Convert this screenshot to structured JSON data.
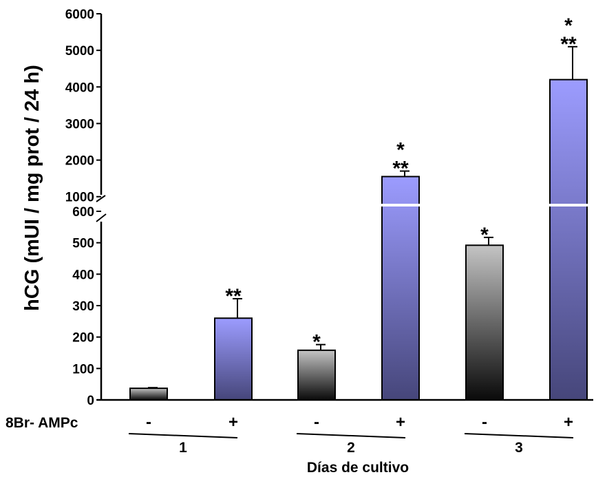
{
  "chart_data": {
    "type": "bar",
    "ylabel": "hCG (mUI / mg prot / 24 h)",
    "xlabel": "Días de cultivo",
    "treatment_label": "8Br- AMPc",
    "y_scale": "broken",
    "y_lower_ticks": [
      0,
      100,
      200,
      300,
      400,
      500,
      600
    ],
    "y_upper_ticks": [
      1000,
      2000,
      3000,
      4000,
      5000,
      6000
    ],
    "y_lower_range": [
      0,
      600
    ],
    "y_upper_range": [
      600,
      6000
    ],
    "groups": [
      {
        "label": "1",
        "bars": [
          {
            "treatment": "-",
            "value": 37,
            "error": 2,
            "fill": "gray",
            "annotation": ""
          },
          {
            "treatment": "+",
            "value": 260,
            "error": 62,
            "fill": "blue",
            "annotation": "**"
          }
        ]
      },
      {
        "label": "2",
        "bars": [
          {
            "treatment": "-",
            "value": 158,
            "error": 18,
            "fill": "gray",
            "annotation": "*"
          },
          {
            "treatment": "+",
            "value": 1550,
            "error": 150,
            "fill": "blue",
            "annotation": "*\n**"
          }
        ]
      },
      {
        "label": "3",
        "bars": [
          {
            "treatment": "-",
            "value": 492,
            "error": 25,
            "fill": "gray",
            "annotation": "*"
          },
          {
            "treatment": "+",
            "value": 4200,
            "error": 900,
            "fill": "blue",
            "annotation": "*\n**"
          }
        ]
      }
    ],
    "colors": {
      "blue_top": "#9c9cff",
      "blue_bottom": "#46467a",
      "gray_top": "#c4c4c4",
      "gray_bottom": "#0a0a0a",
      "break_line": "#ffffff"
    },
    "grid": false,
    "legend": "none"
  }
}
